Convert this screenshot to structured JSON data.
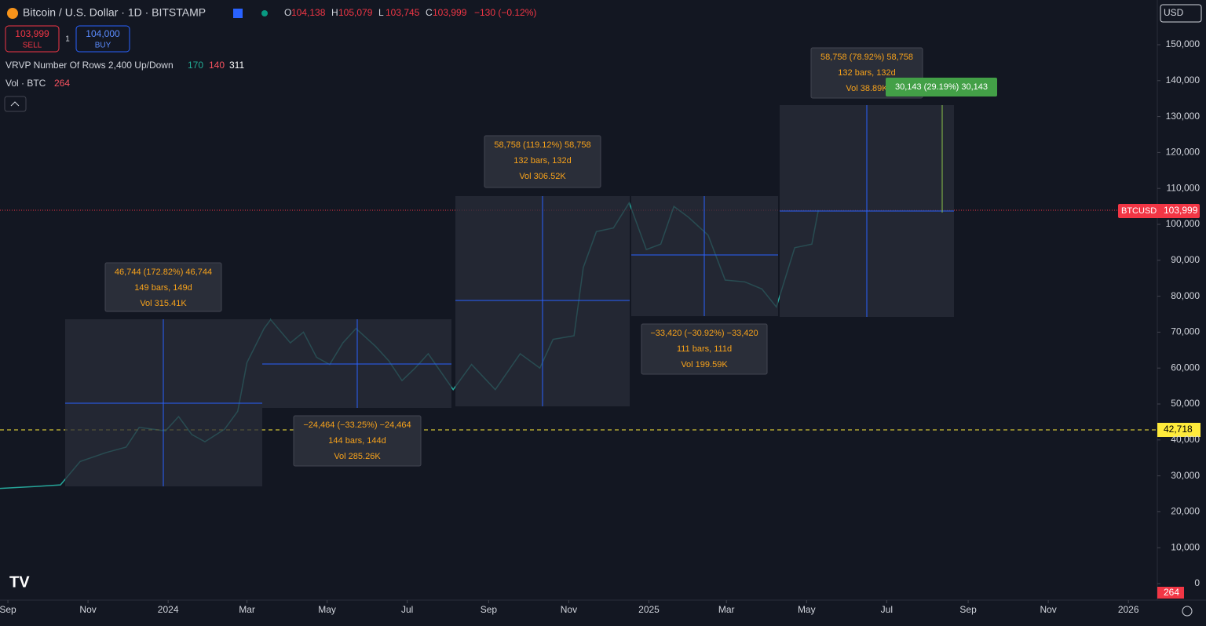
{
  "header": {
    "symbol": "Bitcoin / U.S. Dollar · 1D · BITSTAMP",
    "ohlc": [
      {
        "label": "O",
        "value": "104,138"
      },
      {
        "label": "H",
        "value": "105,079"
      },
      {
        "label": "L",
        "value": "103,745"
      },
      {
        "label": "C",
        "value": "103,999"
      }
    ],
    "change": "−130 (−0.12%)"
  },
  "trade": {
    "sell_price": "103,999",
    "sell": "SELL",
    "spread": "1",
    "buy_price": "104,000",
    "buy": "BUY"
  },
  "indicators": {
    "vrvp": "VRVP Number Of Rows 2,400 Up/Down",
    "up": "170",
    "down": "140",
    "total": "311",
    "vol": "Vol · BTC",
    "vol_value": "264"
  },
  "currency": "USD",
  "price_labels": {
    "symbol": "BTCUSD",
    "last": "103,999",
    "level": "42,718",
    "volume": "264"
  },
  "measurements": [
    {
      "lines": [
        "46,744 (172.82%) 46,744",
        "149 bars, 149d",
        "Vol 315.41K"
      ]
    },
    {
      "lines": [
        "−24,464 (−33.25%) −24,464",
        "144 bars, 144d",
        "Vol 285.26K"
      ]
    },
    {
      "lines": [
        "58,758 (119.12%) 58,758",
        "132 bars, 132d",
        "Vol 306.52K"
      ]
    },
    {
      "lines": [
        "−33,420 (−30.92%) −33,420",
        "111 bars, 111d",
        "Vol 199.59K"
      ]
    },
    {
      "lines": [
        "58,758 (78.92%) 58,758",
        "132 bars, 132d",
        "Vol 38.89K"
      ]
    },
    {
      "lines": [
        "30,143 (29.19%) 30,143"
      ]
    }
  ],
  "chart_data": {
    "type": "line",
    "color": "#26a69a",
    "x": [
      -6,
      20,
      40,
      55,
      75,
      90,
      100,
      120,
      130,
      140,
      150,
      165,
      175,
      182,
      195,
      200,
      215,
      225,
      235,
      245,
      255,
      265,
      280,
      290,
      300,
      310,
      320,
      339,
      353,
      371,
      390,
      405,
      415,
      431,
      438,
      448,
      461,
      473,
      486,
      497,
      507,
      518,
      533,
      546,
      561,
      574,
      585,
      599,
      612,
      617
    ],
    "values": [
      26500,
      27000,
      27500,
      34000,
      36500,
      38000,
      43500,
      42500,
      46500,
      41500,
      39500,
      43000,
      48000,
      61500,
      71000,
      73500,
      67000,
      70000,
      63000,
      61000,
      67000,
      71000,
      66000,
      62000,
      56500,
      60000,
      64000,
      54000,
      61000,
      54000,
      64000,
      60000,
      68000,
      69000,
      88000,
      98000,
      99000,
      106000,
      93000,
      94500,
      105000,
      102000,
      97000,
      84500,
      84000,
      82000,
      77000,
      93500,
      94500,
      103999
    ],
    "xlim": [
      -6,
      875
    ],
    "xticks": [
      {
        "value": 0,
        "label": "Sep"
      },
      {
        "value": 61,
        "label": "Nov"
      },
      {
        "value": 122,
        "label": "2024"
      },
      {
        "value": 182,
        "label": "Mar"
      },
      {
        "value": 243,
        "label": "May"
      },
      {
        "value": 304,
        "label": "Jul"
      },
      {
        "value": 366,
        "label": "Sep"
      },
      {
        "value": 427,
        "label": "Nov"
      },
      {
        "value": 488,
        "label": "2025"
      },
      {
        "value": 547,
        "label": "Mar"
      },
      {
        "value": 608,
        "label": "May"
      },
      {
        "value": 669,
        "label": "Jul"
      },
      {
        "value": 731,
        "label": "Sep"
      },
      {
        "value": 792,
        "label": "Nov"
      },
      {
        "value": 853,
        "label": "2026"
      }
    ],
    "ylim": [
      -4585,
      162445
    ],
    "yticks": [
      0,
      {
        "value": 10000,
        "label": "10,000"
      },
      {
        "value": 20000,
        "label": "20,000"
      },
      {
        "value": 30000,
        "label": "30,000"
      },
      {
        "value": 40000,
        "label": "40,000"
      },
      {
        "value": 50000,
        "label": "50,000"
      },
      {
        "value": 60000,
        "label": "60,000"
      },
      {
        "value": 70000,
        "label": "70,000"
      },
      {
        "value": 80000,
        "label": "80,000"
      },
      {
        "value": 90000,
        "label": "90,000"
      },
      {
        "value": 100000,
        "label": "100,000"
      },
      {
        "value": 110000,
        "label": "110,000"
      },
      {
        "value": 120000,
        "label": "120,000"
      },
      {
        "value": 130000,
        "label": "130,000"
      },
      {
        "value": 140000,
        "label": "140,000"
      },
      {
        "value": 150000,
        "label": "150,000"
      }
    ]
  }
}
